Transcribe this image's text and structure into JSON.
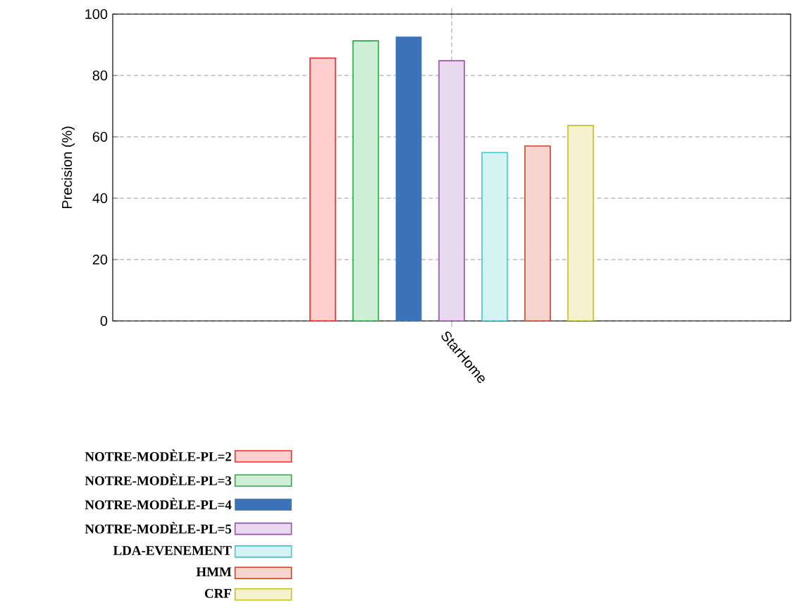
{
  "chart_data": {
    "type": "bar",
    "ylabel": "Precision (%)",
    "categories": [
      "StarHome"
    ],
    "series": [
      {
        "name": "NOTRE-MODÈLE-PL=2",
        "color": "#ff2020",
        "values": [
          85.7
        ]
      },
      {
        "name": "NOTRE-MODÈLE-PL=3",
        "color": "#20b040",
        "values": [
          91.3
        ]
      },
      {
        "name": "NOTRE-MODÈLE-PL=4",
        "color": "#3b72b8",
        "values": [
          92.6
        ]
      },
      {
        "name": "NOTRE-MODÈLE-PL=5",
        "color": "#9b50b0",
        "values": [
          84.8
        ]
      },
      {
        "name": "LDA-EVENEMENT",
        "color": "#40c8d0",
        "values": [
          54.9
        ]
      },
      {
        "name": "HMM",
        "color": "#d04020",
        "values": [
          57.0
        ]
      },
      {
        "name": "CRF",
        "color": "#c8c020",
        "values": [
          63.7
        ]
      }
    ],
    "ylim": [
      0,
      100
    ],
    "yticks": [
      0,
      20,
      40,
      60,
      80,
      100
    ],
    "grid": true,
    "legend": "bottom"
  }
}
